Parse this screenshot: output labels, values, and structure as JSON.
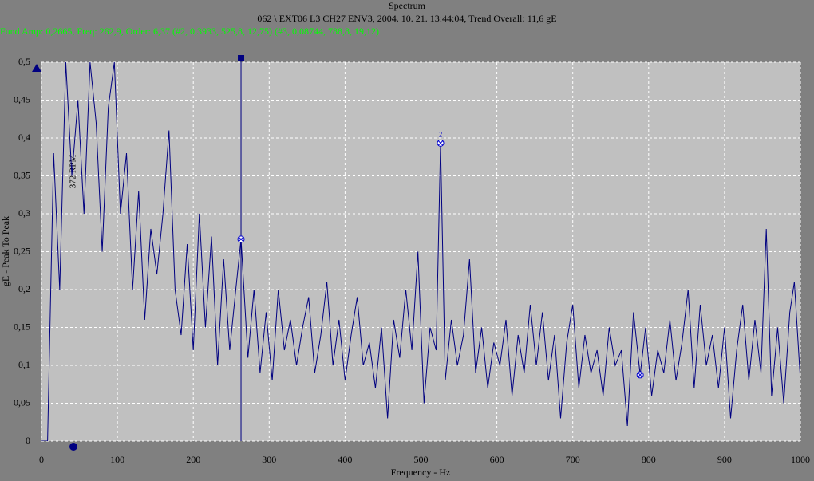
{
  "chart_data": {
    "type": "line",
    "title": "Spectrum",
    "subtitle": "062 \\ EXT06 L3 CH27 ENV3, 2004. 10. 21. 13:44:04, Trend Overall: 11,6 gE",
    "info": "Fund Amp: 0,2665, Freq: 262,9, Order: 6,37 (#2, 0,3933, 525,8, 12,75) (#3, 0,08744, 788,8, 19,12)",
    "x_label": "Frequency - Hz",
    "y_label": "gE - Peak To Peak",
    "annotation": "372 RPM",
    "color": "#000080",
    "grid": true,
    "xlim": [
      0,
      1000
    ],
    "ylim": [
      0,
      0.5
    ],
    "xticks": [
      0,
      100,
      200,
      300,
      400,
      500,
      600,
      700,
      800,
      900,
      1000
    ],
    "yticks": [
      0,
      {
        "value": 0.05,
        "label": "0,05"
      },
      {
        "value": 0.1,
        "label": "0,1"
      },
      {
        "value": 0.15,
        "label": "0,15"
      },
      {
        "value": 0.2,
        "label": "0,2"
      },
      {
        "value": 0.25,
        "label": "0,25"
      },
      {
        "value": 0.3,
        "label": "0,3"
      },
      {
        "value": 0.35,
        "label": "0,35"
      },
      {
        "value": 0.4,
        "label": "0,4"
      },
      {
        "value": 0.45,
        "label": "0,45"
      },
      {
        "value": 0.5,
        "label": "0,5"
      }
    ],
    "x": [
      0,
      8,
      16,
      24,
      32,
      40,
      48,
      56,
      64,
      72,
      80,
      88,
      96,
      104,
      112,
      120,
      128,
      136,
      144,
      152,
      160,
      168,
      176,
      184,
      192,
      200,
      208,
      216,
      224,
      232,
      240,
      248,
      256,
      262.9,
      272,
      280,
      288,
      296,
      304,
      312,
      320,
      328,
      336,
      344,
      352,
      360,
      368,
      376,
      384,
      392,
      400,
      408,
      416,
      424,
      432,
      440,
      448,
      456,
      464,
      472,
      480,
      488,
      496,
      504,
      512,
      520,
      525.8,
      532,
      540,
      548,
      556,
      564,
      572,
      580,
      588,
      596,
      604,
      612,
      620,
      628,
      636,
      644,
      652,
      660,
      668,
      676,
      684,
      692,
      700,
      708,
      716,
      724,
      732,
      740,
      748,
      756,
      764,
      772,
      780,
      788.8,
      796,
      804,
      812,
      820,
      828,
      836,
      844,
      852,
      860,
      868,
      876,
      884,
      892,
      900,
      908,
      916,
      924,
      932,
      940,
      948,
      955,
      962,
      970,
      978,
      986,
      992,
      1000
    ],
    "values": [
      0,
      0,
      0.38,
      0.2,
      0.5,
      0.35,
      0.45,
      0.3,
      0.5,
      0.42,
      0.25,
      0.44,
      0.5,
      0.3,
      0.38,
      0.2,
      0.33,
      0.16,
      0.28,
      0.22,
      0.3,
      0.41,
      0.2,
      0.14,
      0.26,
      0.12,
      0.3,
      0.15,
      0.27,
      0.1,
      0.24,
      0.12,
      0.2,
      0.2665,
      0.11,
      0.2,
      0.09,
      0.17,
      0.08,
      0.2,
      0.12,
      0.16,
      0.1,
      0.15,
      0.19,
      0.09,
      0.14,
      0.21,
      0.1,
      0.16,
      0.08,
      0.14,
      0.19,
      0.1,
      0.13,
      0.07,
      0.15,
      0.03,
      0.16,
      0.11,
      0.2,
      0.12,
      0.25,
      0.05,
      0.15,
      0.12,
      0.3933,
      0.08,
      0.16,
      0.1,
      0.14,
      0.24,
      0.09,
      0.15,
      0.07,
      0.13,
      0.1,
      0.16,
      0.06,
      0.14,
      0.09,
      0.18,
      0.1,
      0.17,
      0.08,
      0.14,
      0.03,
      0.13,
      0.18,
      0.07,
      0.14,
      0.09,
      0.12,
      0.06,
      0.15,
      0.1,
      0.12,
      0.02,
      0.17,
      0.08744,
      0.15,
      0.06,
      0.12,
      0.09,
      0.16,
      0.08,
      0.13,
      0.2,
      0.07,
      0.18,
      0.1,
      0.14,
      0.07,
      0.15,
      0.03,
      0.12,
      0.18,
      0.08,
      0.16,
      0.09,
      0.28,
      0.06,
      0.15,
      0.05,
      0.17,
      0.21,
      0.08
    ],
    "cursor_x": 262.9,
    "harmonics": {
      "x": [
        262.9,
        525.8,
        788.8
      ],
      "values": [
        0.2665,
        0.3933,
        0.08744
      ]
    },
    "harmonic_label": "2"
  }
}
